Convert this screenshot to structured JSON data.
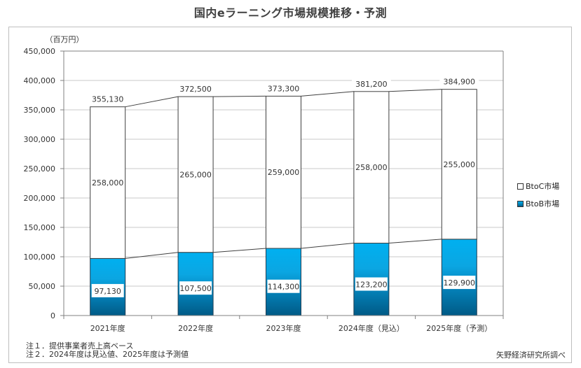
{
  "chart_data": {
    "type": "bar",
    "stacked": true,
    "title": "国内eラーニング市場規模推移・予測",
    "ylabel": "（百万円）",
    "xlabel": "",
    "ylim": [
      0,
      450000
    ],
    "yticks": [
      0,
      50000,
      100000,
      150000,
      200000,
      250000,
      300000,
      350000,
      400000,
      450000
    ],
    "ytick_labels": [
      "0",
      "50,000",
      "100,000",
      "150,000",
      "200,000",
      "250,000",
      "300,000",
      "350,000",
      "400,000",
      "450,000"
    ],
    "grid": true,
    "categories": [
      "2021年度",
      "2022年度",
      "2023年度",
      "2024年度（見込）",
      "2025年度（予測）"
    ],
    "series": [
      {
        "name": "BtoB市場",
        "values": [
          97130,
          107500,
          114300,
          123200,
          129900
        ],
        "labels": [
          "97,130",
          "107,500",
          "114,300",
          "123,200",
          "129,900"
        ],
        "color_top": "#00B0F0",
        "color_bottom": "#005F8C"
      },
      {
        "name": "BtoC市場",
        "values": [
          258000,
          265000,
          259000,
          258000,
          255000
        ],
        "labels": [
          "258,000",
          "265,000",
          "259,000",
          "258,000",
          "255,000"
        ],
        "color": "#FFFFFF"
      }
    ],
    "totals": [
      355130,
      372500,
      373300,
      381200,
      384900
    ],
    "total_labels": [
      "355,130",
      "372,500",
      "373,300",
      "381,200",
      "384,900"
    ],
    "legend": {
      "position": "right",
      "entries": [
        "BtoC市場",
        "BtoB市場"
      ]
    },
    "series_lines": true
  },
  "notes": [
    "注１．提供事業者売上高ベース",
    "注２．2024年度は見込値、2025年度は予測値"
  ],
  "source": "矢野経済研究所調べ",
  "colors": {
    "btob_light": "#00B0F0",
    "btob_dark": "#005F8C",
    "grid": "#bfbfbf",
    "axis": "#808080"
  }
}
